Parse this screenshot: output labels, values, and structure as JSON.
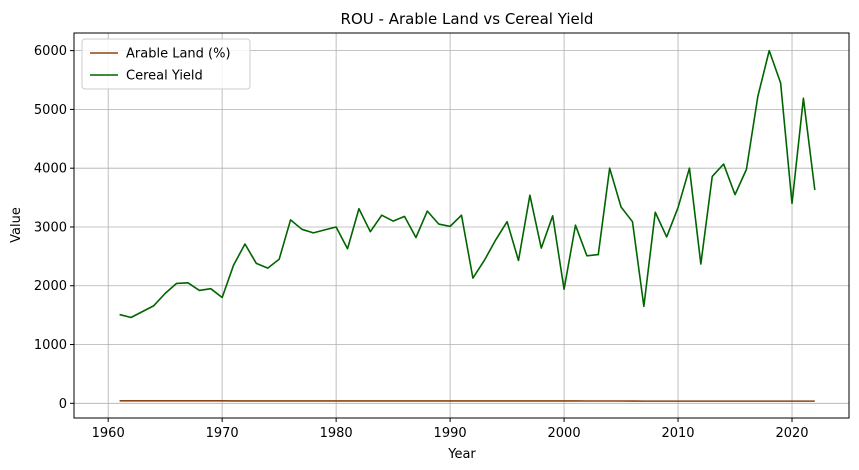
{
  "chart_data": {
    "type": "line",
    "title": "ROU - Arable Land vs Cereal Yield",
    "xlabel": "Year",
    "ylabel": "Value",
    "xlim": [
      1957,
      2025
    ],
    "ylim": [
      -250,
      6300
    ],
    "xticks": [
      1960,
      1970,
      1980,
      1990,
      2000,
      2010,
      2020
    ],
    "yticks": [
      0,
      1000,
      2000,
      3000,
      4000,
      5000,
      6000
    ],
    "grid": true,
    "legend_position": "top-left",
    "x": [
      1961,
      1962,
      1963,
      1964,
      1965,
      1966,
      1967,
      1968,
      1969,
      1970,
      1971,
      1972,
      1973,
      1974,
      1975,
      1976,
      1977,
      1978,
      1979,
      1980,
      1981,
      1982,
      1983,
      1984,
      1985,
      1986,
      1987,
      1988,
      1989,
      1990,
      1991,
      1992,
      1993,
      1994,
      1995,
      1996,
      1997,
      1998,
      1999,
      2000,
      2001,
      2002,
      2003,
      2004,
      2005,
      2006,
      2007,
      2008,
      2009,
      2010,
      2011,
      2012,
      2013,
      2014,
      2015,
      2016,
      2017,
      2018,
      2019,
      2020,
      2021,
      2022
    ],
    "series": [
      {
        "name": "Arable Land (%)",
        "color": "#8B4513",
        "values": [
          42,
          42,
          42,
          42,
          42,
          42,
          42,
          42,
          42,
          42,
          41,
          41,
          41,
          41,
          41,
          41,
          41,
          41,
          41,
          41,
          41,
          41,
          41,
          41,
          41,
          41,
          41,
          41,
          41,
          41,
          40,
          40,
          40,
          40,
          40,
          40,
          40,
          40,
          40,
          40,
          40,
          39,
          39,
          39,
          39,
          38,
          37,
          37,
          37,
          37,
          37,
          37,
          37,
          37,
          37,
          37,
          37,
          37,
          37,
          37,
          37,
          37
        ]
      },
      {
        "name": "Cereal Yield",
        "color": "#006400",
        "values": [
          1510,
          1460,
          1560,
          1660,
          1870,
          2040,
          2050,
          1920,
          1950,
          1800,
          2350,
          2710,
          2380,
          2300,
          2450,
          3120,
          2960,
          2900,
          2950,
          3000,
          2630,
          3310,
          2920,
          3200,
          3100,
          3180,
          2820,
          3270,
          3050,
          3010,
          3200,
          2130,
          2430,
          2780,
          3090,
          2430,
          3540,
          2640,
          3190,
          1940,
          3030,
          2510,
          2530,
          4000,
          3340,
          3090,
          1650,
          3250,
          2830,
          3330,
          4000,
          2370,
          3860,
          4070,
          3550,
          3980,
          5220,
          6000,
          5450,
          3400,
          5190,
          3630
        ]
      }
    ]
  }
}
